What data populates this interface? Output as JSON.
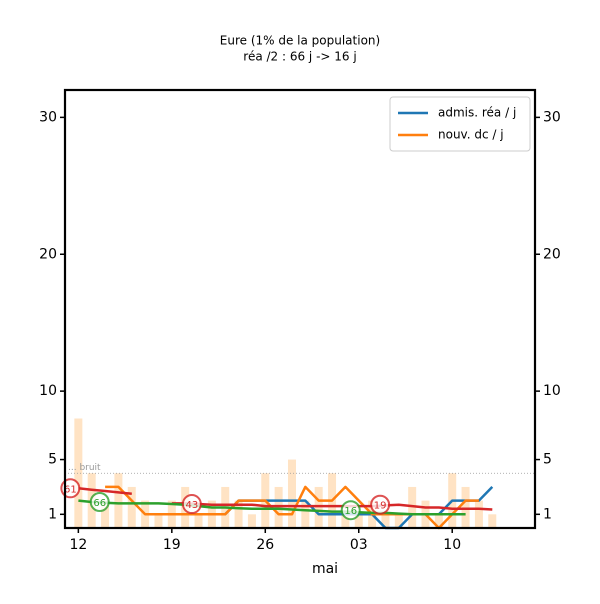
{
  "chart_data": {
    "type": "line",
    "title": "Eure (1% de la population)",
    "subtitle": "réa /2 : 66 j -> 16 j",
    "x_label": "mai",
    "x": [
      0,
      1,
      2,
      3,
      4,
      5,
      6,
      7,
      8,
      9,
      10,
      11,
      12,
      13,
      14,
      15,
      16,
      17,
      18,
      19,
      20,
      21,
      22,
      23,
      24,
      25,
      26,
      27,
      28,
      29,
      30,
      31
    ],
    "series": [
      {
        "style": "bar",
        "color": "#ffe3c4",
        "values": [
          8,
          4,
          2,
          4,
          3,
          2,
          1,
          2,
          3,
          1,
          2,
          3,
          2,
          1,
          4,
          3,
          5,
          2,
          3,
          4,
          1,
          1,
          2,
          1,
          1,
          3,
          2,
          1,
          4,
          3,
          2,
          1
        ]
      },
      {
        "name": "admis. réa / j",
        "color": "#1f77b4",
        "values": [
          null,
          null,
          null,
          null,
          null,
          null,
          null,
          null,
          null,
          1,
          1,
          1,
          2,
          2,
          2,
          2,
          2,
          2,
          1,
          1,
          1,
          1,
          1,
          0,
          0,
          1,
          1,
          1,
          2,
          2,
          2,
          3
        ]
      },
      {
        "name": "nouv. dc / j",
        "color": "#ff7f0e",
        "values": [
          null,
          null,
          3,
          3,
          2,
          1,
          1,
          1,
          1,
          1,
          1,
          1,
          2,
          2,
          2,
          1,
          1,
          3,
          2,
          2,
          3,
          2,
          1,
          1,
          1,
          1,
          1,
          0,
          1,
          2,
          2,
          null
        ]
      },
      {
        "color": "#d62728",
        "values": [
          2.9,
          2.8,
          2.7,
          2.6,
          2.5,
          null,
          null,
          1.8,
          1.8,
          1.75,
          1.7,
          1.7,
          1.7,
          1.7,
          1.6,
          1.6,
          1.6,
          1.6,
          1.6,
          1.6,
          1.6,
          1.6,
          1.6,
          1.65,
          1.7,
          1.6,
          1.5,
          1.5,
          1.4,
          1.4,
          1.4,
          1.35
        ]
      },
      {
        "color": "#2ca02c",
        "values": [
          2.0,
          1.9,
          1.85,
          1.8,
          1.8,
          1.8,
          1.8,
          1.75,
          1.7,
          1.6,
          1.5,
          1.5,
          1.45,
          1.4,
          1.4,
          1.4,
          1.35,
          1.3,
          1.25,
          1.2,
          1.2,
          1.15,
          1.1,
          1.1,
          1.05,
          1.0,
          1.0,
          1.0,
          1.0,
          1.0,
          null,
          null
        ]
      }
    ],
    "annotations": [
      {
        "text": "61",
        "x": -0.6,
        "y": 2.9,
        "color": "#d62728"
      },
      {
        "text": "66",
        "x": 1.6,
        "y": 1.9,
        "color": "#2ca02c"
      },
      {
        "text": "43",
        "x": 8.5,
        "y": 1.75,
        "color": "#d62728"
      },
      {
        "text": "16",
        "x": 20.4,
        "y": 1.3,
        "color": "#2ca02c"
      },
      {
        "text": "19",
        "x": 22.6,
        "y": 1.7,
        "color": "#d62728"
      }
    ],
    "noise_level": 4,
    "noise_label": "... bruit",
    "xlim": [
      -1,
      34.2
    ],
    "xticks": [
      {
        "value": 0,
        "label": "12"
      },
      {
        "value": 7,
        "label": "19"
      },
      {
        "value": 14,
        "label": "26"
      },
      {
        "value": 21,
        "label": "03"
      },
      {
        "value": 28,
        "label": "10"
      }
    ],
    "ylim": [
      0,
      32
    ],
    "yticks": [
      1,
      5,
      10,
      20,
      30
    ],
    "legend": "upper right"
  }
}
